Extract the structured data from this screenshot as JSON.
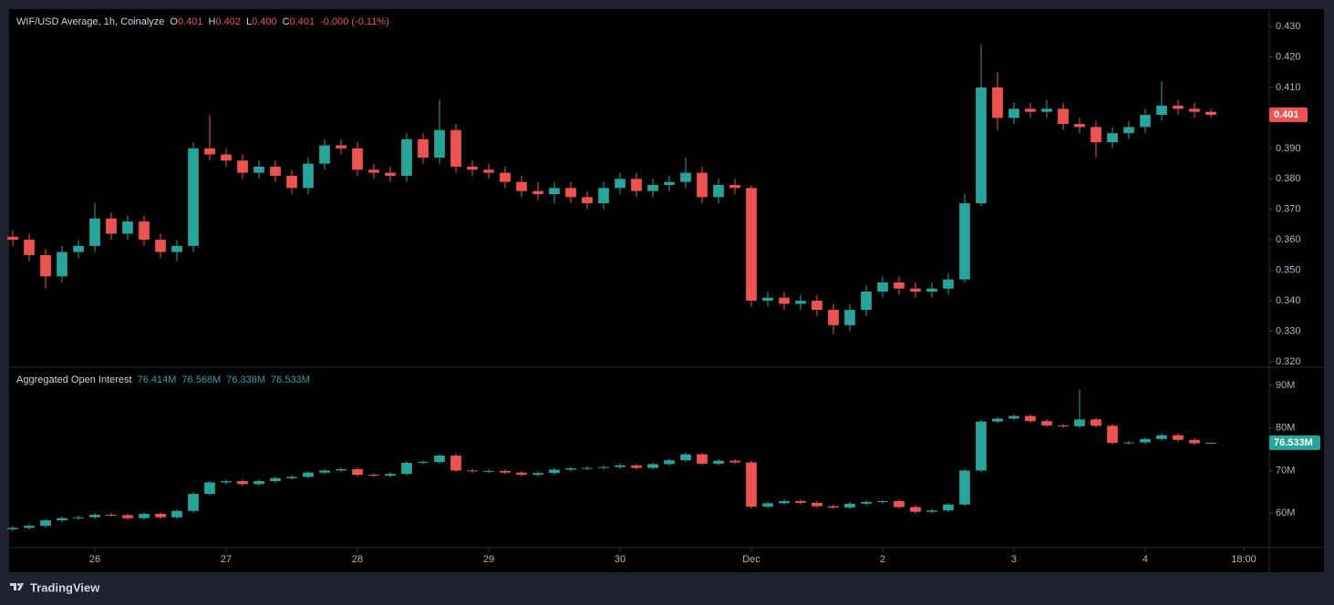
{
  "chart_data": [
    {
      "type": "candlestick",
      "legend": {
        "title": "WIF/USD Average, 1h, Coinalyze",
        "items": [
          {
            "label": "O",
            "value": "0.401"
          },
          {
            "label": "H",
            "value": "0.402"
          },
          {
            "label": "L",
            "value": "0.400"
          },
          {
            "label": "C",
            "value": "0.401"
          }
        ],
        "change": "-0.000 (-0.11%)"
      },
      "up_color": "#26a69a",
      "down_color": "#ef5350",
      "last_value": 0.401,
      "xlim": [
        -15.67,
        214.67
      ],
      "x": [
        -15,
        -12,
        -9,
        -6,
        -3,
        0,
        3,
        6,
        9,
        12,
        15,
        18,
        21,
        24,
        27,
        30,
        33,
        36,
        39,
        42,
        45,
        48,
        51,
        54,
        57,
        60,
        63,
        66,
        69,
        72,
        75,
        78,
        81,
        84,
        87,
        90,
        93,
        96,
        99,
        102,
        105,
        108,
        111,
        114,
        117,
        120,
        123,
        126,
        129,
        132,
        135,
        138,
        141,
        144,
        147,
        150,
        153,
        156,
        159,
        162,
        165,
        168,
        171,
        174,
        177,
        180,
        183,
        186,
        189,
        192,
        195,
        198,
        201,
        204
      ],
      "open": [
        0.361,
        0.36,
        0.355,
        0.348,
        0.356,
        0.358,
        0.367,
        0.362,
        0.366,
        0.36,
        0.356,
        0.358,
        0.39,
        0.388,
        0.386,
        0.382,
        0.384,
        0.381,
        0.377,
        0.385,
        0.391,
        0.39,
        0.383,
        0.382,
        0.381,
        0.393,
        0.387,
        0.396,
        0.384,
        0.383,
        0.382,
        0.379,
        0.376,
        0.375,
        0.377,
        0.374,
        0.372,
        0.377,
        0.38,
        0.376,
        0.378,
        0.379,
        0.382,
        0.374,
        0.378,
        0.377,
        0.34,
        0.341,
        0.339,
        0.34,
        0.337,
        0.332,
        0.337,
        0.343,
        0.346,
        0.344,
        0.343,
        0.344,
        0.347,
        0.372,
        0.41,
        0.4,
        0.403,
        0.402,
        0.403,
        0.398,
        0.397,
        0.392,
        0.395,
        0.397,
        0.401,
        0.404,
        0.403,
        0.402
      ],
      "high": [
        0.363,
        0.362,
        0.357,
        0.358,
        0.36,
        0.372,
        0.369,
        0.368,
        0.368,
        0.362,
        0.36,
        0.392,
        0.401,
        0.39,
        0.388,
        0.386,
        0.386,
        0.383,
        0.387,
        0.393,
        0.393,
        0.392,
        0.385,
        0.384,
        0.395,
        0.395,
        0.406,
        0.398,
        0.386,
        0.385,
        0.384,
        0.381,
        0.379,
        0.379,
        0.379,
        0.376,
        0.379,
        0.382,
        0.382,
        0.38,
        0.381,
        0.387,
        0.384,
        0.38,
        0.38,
        0.378,
        0.343,
        0.343,
        0.342,
        0.342,
        0.339,
        0.339,
        0.345,
        0.348,
        0.348,
        0.346,
        0.346,
        0.349,
        0.375,
        0.424,
        0.415,
        0.405,
        0.405,
        0.406,
        0.405,
        0.4,
        0.399,
        0.397,
        0.399,
        0.403,
        0.412,
        0.406,
        0.405,
        0.403
      ],
      "low": [
        0.358,
        0.353,
        0.344,
        0.346,
        0.354,
        0.356,
        0.36,
        0.36,
        0.358,
        0.354,
        0.353,
        0.356,
        0.386,
        0.384,
        0.38,
        0.38,
        0.379,
        0.375,
        0.375,
        0.383,
        0.388,
        0.381,
        0.38,
        0.379,
        0.379,
        0.385,
        0.385,
        0.382,
        0.381,
        0.38,
        0.377,
        0.374,
        0.373,
        0.372,
        0.372,
        0.37,
        0.37,
        0.375,
        0.374,
        0.374,
        0.376,
        0.377,
        0.372,
        0.372,
        0.375,
        0.338,
        0.338,
        0.337,
        0.337,
        0.335,
        0.329,
        0.33,
        0.335,
        0.341,
        0.342,
        0.341,
        0.341,
        0.342,
        0.346,
        0.371,
        0.396,
        0.398,
        0.4,
        0.4,
        0.396,
        0.395,
        0.387,
        0.39,
        0.393,
        0.395,
        0.399,
        0.401,
        0.4,
        0.4
      ],
      "close": [
        0.36,
        0.355,
        0.348,
        0.356,
        0.358,
        0.367,
        0.362,
        0.366,
        0.36,
        0.356,
        0.358,
        0.39,
        0.388,
        0.386,
        0.382,
        0.384,
        0.381,
        0.377,
        0.385,
        0.391,
        0.39,
        0.383,
        0.382,
        0.381,
        0.393,
        0.387,
        0.396,
        0.384,
        0.383,
        0.382,
        0.379,
        0.376,
        0.375,
        0.377,
        0.374,
        0.372,
        0.377,
        0.38,
        0.376,
        0.378,
        0.379,
        0.382,
        0.374,
        0.378,
        0.377,
        0.34,
        0.341,
        0.339,
        0.34,
        0.337,
        0.332,
        0.337,
        0.343,
        0.346,
        0.344,
        0.343,
        0.344,
        0.347,
        0.372,
        0.41,
        0.4,
        0.403,
        0.402,
        0.403,
        0.398,
        0.397,
        0.392,
        0.395,
        0.397,
        0.401,
        0.404,
        0.403,
        0.402,
        0.401
      ],
      "ylim": [
        0.3182,
        0.4357
      ],
      "yticks": [
        {
          "value": 0.43,
          "label": "0.430"
        },
        {
          "value": 0.42,
          "label": "0.420"
        },
        {
          "value": 0.41,
          "label": "0.410"
        },
        {
          "value": 0.39,
          "label": "0.390"
        },
        {
          "value": 0.38,
          "label": "0.380"
        },
        {
          "value": 0.37,
          "label": "0.370"
        },
        {
          "value": 0.36,
          "label": "0.360"
        },
        {
          "value": 0.35,
          "label": "0.350"
        },
        {
          "value": 0.34,
          "label": "0.340"
        },
        {
          "value": 0.33,
          "label": "0.330"
        },
        {
          "value": 0.32,
          "label": "0.320"
        }
      ]
    },
    {
      "type": "candlestick",
      "legend": {
        "title": "Aggregated Open Interest",
        "items": [
          {
            "value": "76.414M"
          },
          {
            "value": "76.568M"
          },
          {
            "value": "76.338M"
          },
          {
            "value": "76.533M"
          }
        ]
      },
      "up_color": "#26a69a",
      "down_color": "#ef5350",
      "last_value": {
        "value": 76.533,
        "label": "76.533M"
      },
      "xlim": [
        -15.67,
        214.67
      ],
      "x": [
        -15,
        -12,
        -9,
        -6,
        -3,
        0,
        3,
        6,
        9,
        12,
        15,
        18,
        21,
        24,
        27,
        30,
        33,
        36,
        39,
        42,
        45,
        48,
        51,
        54,
        57,
        60,
        63,
        66,
        69,
        72,
        75,
        78,
        81,
        84,
        87,
        90,
        93,
        96,
        99,
        102,
        105,
        108,
        111,
        114,
        117,
        120,
        123,
        126,
        129,
        132,
        135,
        138,
        141,
        144,
        147,
        150,
        153,
        156,
        159,
        162,
        165,
        168,
        171,
        174,
        177,
        180,
        183,
        186,
        189,
        192,
        195,
        198,
        201,
        204
      ],
      "open": [
        56.2,
        56.5,
        57,
        58.3,
        58.8,
        59,
        59.6,
        59.5,
        58.8,
        59.8,
        59,
        60.5,
        64.5,
        67.2,
        67.5,
        66.8,
        67.5,
        68.2,
        68.5,
        69.5,
        70,
        70.3,
        69,
        68.8,
        69.2,
        71.8,
        72,
        73.5,
        70,
        69.8,
        69.9,
        69.5,
        69,
        69.4,
        70.2,
        70.5,
        70.6,
        70.8,
        71.2,
        70.6,
        71.5,
        72.4,
        73.8,
        71.6,
        72.3,
        71.9,
        61.5,
        62.3,
        62.8,
        62.4,
        61.6,
        61.3,
        62.2,
        62.6,
        62.8,
        61.4,
        60.3,
        60.6,
        62,
        70,
        81.5,
        82.2,
        82.8,
        81.6,
        80.6,
        80.4,
        82,
        80.5,
        76.5,
        76.6,
        77.4,
        78.3,
        77.2,
        76.414
      ],
      "high": [
        56.9,
        57.4,
        58.7,
        59.2,
        59.4,
        60,
        60,
        59.9,
        60.2,
        60.2,
        60.9,
        64.9,
        67.6,
        67.9,
        67.9,
        67.9,
        68.6,
        68.9,
        69.9,
        70.4,
        70.7,
        70.7,
        69.4,
        69.6,
        72.2,
        72.4,
        73.9,
        73.9,
        70.4,
        70.3,
        70.3,
        69.9,
        69.8,
        70.6,
        70.9,
        71,
        71.2,
        71.6,
        71.6,
        71.9,
        72.8,
        74.2,
        74.2,
        72.7,
        72.7,
        72.3,
        62.7,
        63.2,
        63.2,
        62.8,
        62,
        62.6,
        63,
        63.2,
        63.2,
        61.8,
        61,
        62.4,
        70.4,
        81.9,
        82.6,
        83.2,
        83.2,
        82,
        81,
        89,
        82.4,
        80.9,
        76.9,
        77.8,
        78.7,
        78.7,
        77.6,
        76.568
      ],
      "low": [
        55.8,
        56.1,
        56.6,
        57.9,
        58.4,
        58.6,
        59.1,
        58.4,
        58.4,
        58.6,
        58.6,
        60.1,
        64.1,
        66.8,
        66.4,
        66.4,
        67.1,
        67.8,
        68.1,
        69.1,
        69.6,
        68.6,
        68.4,
        68.4,
        68.8,
        71.4,
        71.6,
        69.6,
        69.4,
        69.4,
        69.1,
        68.6,
        68.6,
        69,
        69.8,
        70.1,
        70.2,
        70.4,
        70.2,
        70.2,
        71.1,
        72,
        71.2,
        71.2,
        71.5,
        61.1,
        61.1,
        61.9,
        62,
        61.2,
        60.9,
        60.9,
        61.8,
        62.2,
        61,
        59.9,
        59.9,
        60.2,
        61.6,
        69.6,
        81.1,
        81.8,
        81.2,
        80.2,
        80,
        80,
        80.1,
        76.1,
        76.1,
        76.2,
        77,
        76.8,
        76,
        76.338
      ],
      "close": [
        56.5,
        57,
        58.3,
        58.8,
        59,
        59.6,
        59.5,
        58.8,
        59.8,
        59,
        60.5,
        64.5,
        67.2,
        67.5,
        66.8,
        67.5,
        68.2,
        68.5,
        69.5,
        70,
        70.3,
        69,
        68.8,
        69.2,
        71.8,
        72,
        73.5,
        70,
        69.8,
        69.9,
        69.5,
        69,
        69.4,
        70.2,
        70.5,
        70.6,
        70.8,
        71.2,
        70.6,
        71.5,
        72.4,
        73.8,
        71.6,
        72.3,
        71.9,
        61.5,
        62.3,
        62.8,
        62.4,
        61.6,
        61.3,
        62.2,
        62.6,
        62.8,
        61.4,
        60.3,
        60.6,
        62,
        70,
        81.5,
        82.2,
        82.8,
        81.6,
        80.6,
        80.4,
        82,
        80.5,
        76.5,
        76.6,
        77.4,
        78.3,
        77.2,
        76.4,
        76.533
      ],
      "ylim": [
        51.88,
        94.28
      ],
      "yticks": [
        {
          "value": 90,
          "label": "90M"
        },
        {
          "value": 80,
          "label": "80M"
        },
        {
          "value": 70,
          "label": "70M"
        },
        {
          "value": 60,
          "label": "60M"
        }
      ],
      "xticks": [
        {
          "value": 0,
          "label": "26"
        },
        {
          "value": 24,
          "label": "27"
        },
        {
          "value": 48,
          "label": "28"
        },
        {
          "value": 72,
          "label": "29"
        },
        {
          "value": 96,
          "label": "30"
        },
        {
          "value": 120,
          "label": "Dec"
        },
        {
          "value": 144,
          "label": "2"
        },
        {
          "value": 168,
          "label": "3"
        },
        {
          "value": 192,
          "label": "4"
        },
        {
          "value": 210,
          "label": "18:00"
        }
      ]
    }
  ],
  "footer": {
    "brand": "TradingView"
  }
}
